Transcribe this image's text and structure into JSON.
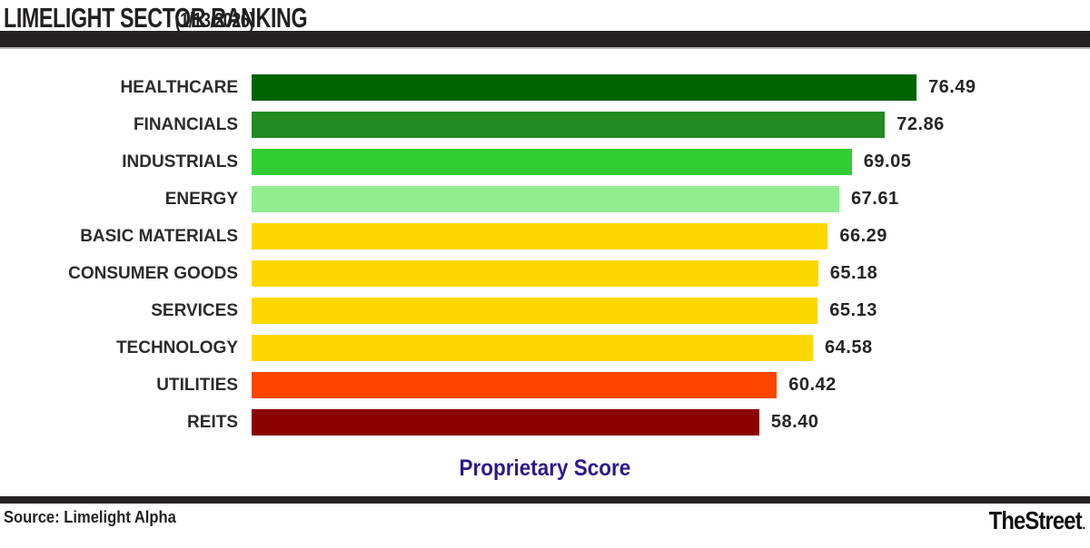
{
  "header": {
    "title": "LIMELIGHT SECTOR RANKING",
    "date": "(1/13/2026)"
  },
  "chart_data": {
    "type": "bar",
    "orientation": "horizontal",
    "title": "LIMELIGHT SECTOR RANKING (1/13/2026)",
    "categories": [
      "HEALTHCARE",
      "FINANCIALS",
      "INDUSTRIALS",
      "ENERGY",
      "BASIC MATERIALS",
      "CONSUMER GOODS",
      "SERVICES",
      "TECHNOLOGY",
      "UTILITIES",
      "REITS"
    ],
    "values": [
      76.49,
      72.86,
      69.05,
      67.61,
      66.29,
      65.18,
      65.13,
      64.58,
      60.42,
      58.4
    ],
    "value_labels": [
      "76.49",
      "72.86",
      "69.05",
      "67.61",
      "66.29",
      "65.18",
      "65.13",
      "64.58",
      "60.42",
      "58.40"
    ],
    "bar_colors": [
      "#006400",
      "#228B22",
      "#32CD32",
      "#90EE90",
      "#FFD700",
      "#FFD700",
      "#FFD700",
      "#FFD700",
      "#FF4500",
      "#8B0000"
    ],
    "xlabel": "Proprietary Score",
    "xlabel_color": "#2a1a8c",
    "xlim": [
      0,
      76.49
    ],
    "grid": false,
    "legend": false,
    "value_labels_position": "end-of-bar"
  },
  "footer": {
    "source": "Source: Limelight Alpha",
    "brand": "TheStreet",
    "brand_suffix": "."
  }
}
